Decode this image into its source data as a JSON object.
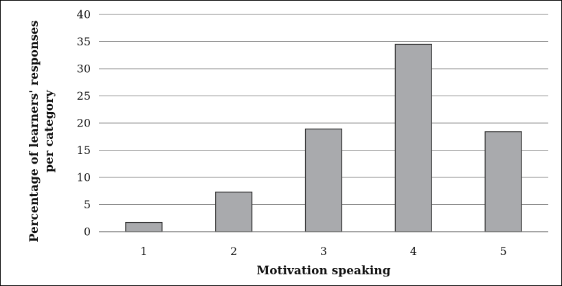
{
  "chart_data": {
    "type": "bar",
    "categories": [
      "1",
      "2",
      "3",
      "4",
      "5"
    ],
    "values": [
      1.7,
      7.3,
      18.9,
      34.5,
      18.4
    ],
    "title": "",
    "xlabel": "Motivation speaking",
    "ylabel_lines": [
      "Percentage  of learners' responses",
      "per category"
    ],
    "ylim": [
      0,
      40
    ],
    "yticks": [
      "0",
      "5",
      "10",
      "15",
      "20",
      "25",
      "30",
      "35",
      "40"
    ],
    "grid": true,
    "legend": "none",
    "bar_color": "#a9aaad",
    "bar_edge_color": "#2c2c2c"
  }
}
